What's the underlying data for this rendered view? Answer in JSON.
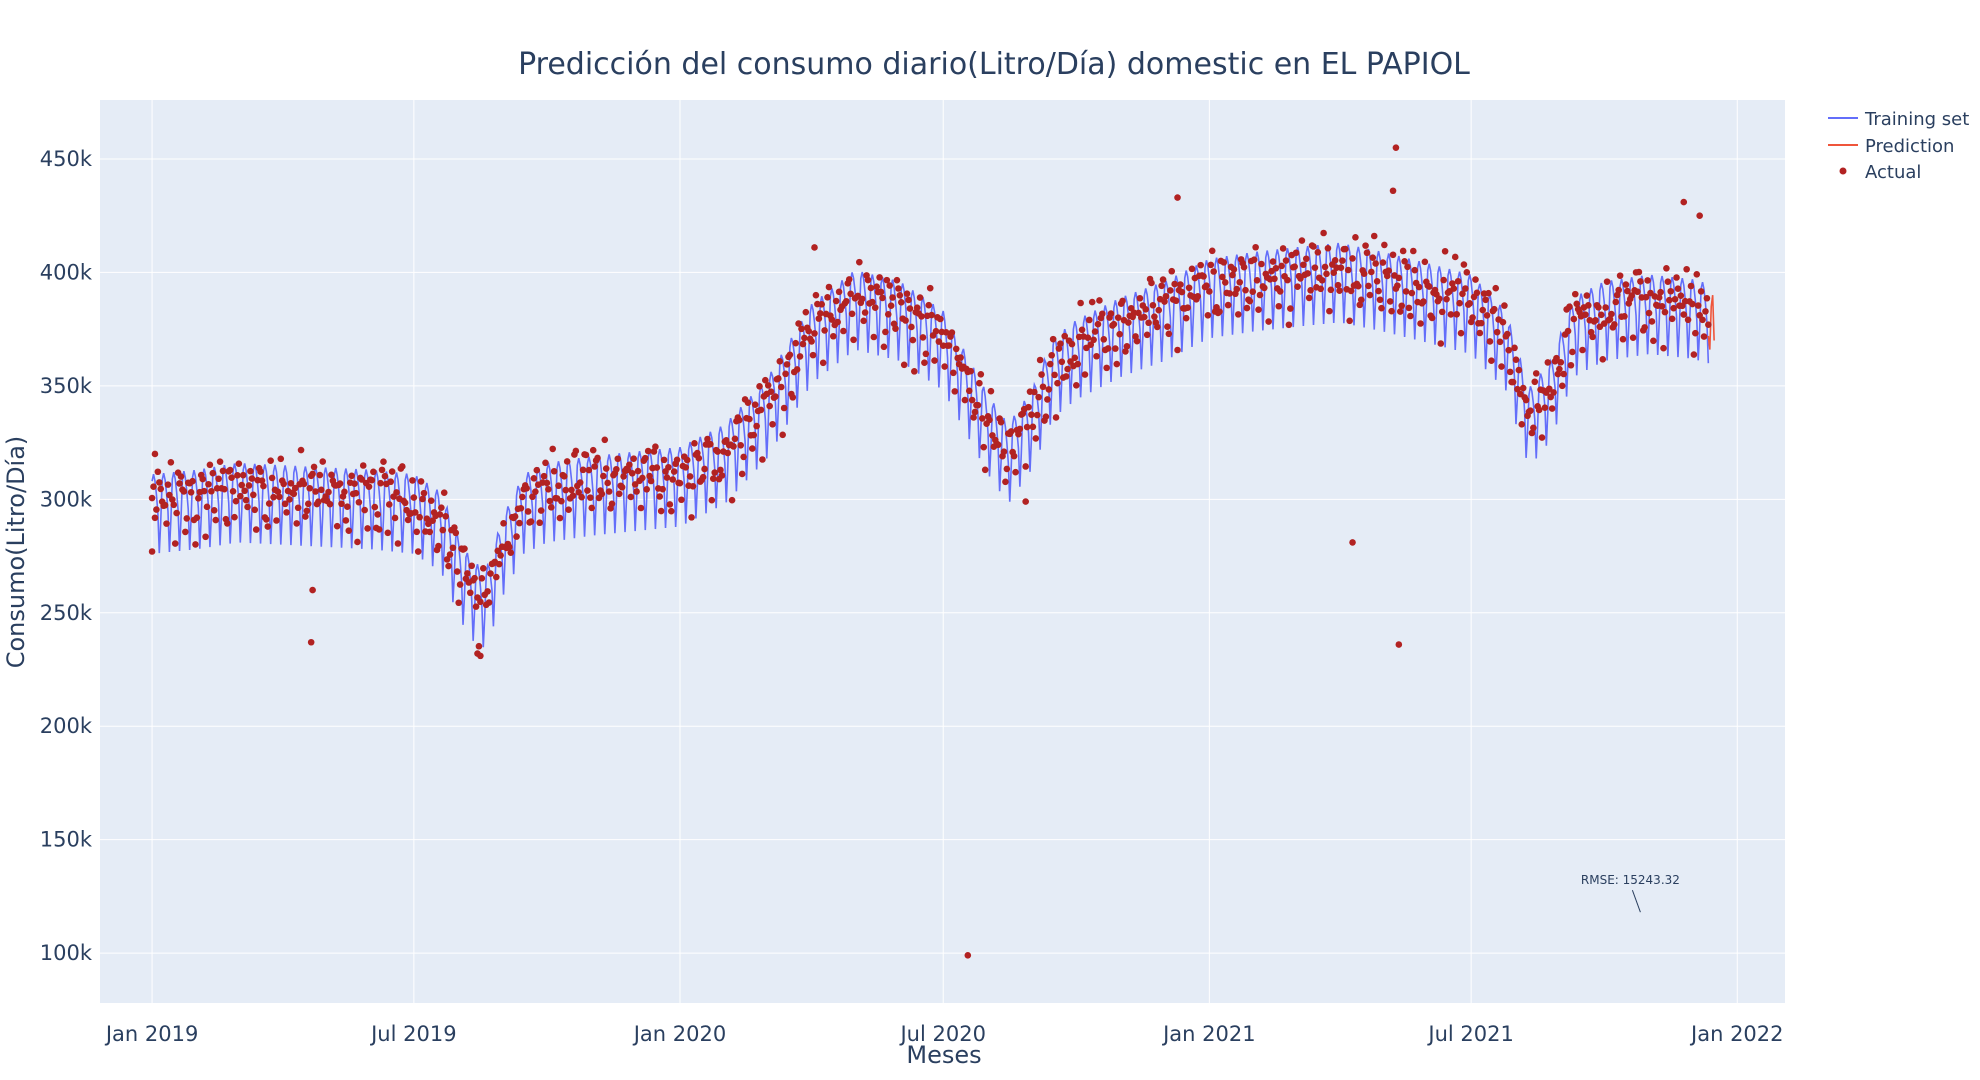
{
  "chart_data": {
    "type": "line",
    "title": "Predicción del consumo diario(Litro/Día) domestic en EL PAPIOL",
    "xlabel": "Meses",
    "ylabel": "Consumo(Litro/Día)",
    "x_range": [
      "2018-11-26",
      "2022-02-03"
    ],
    "ylim": [
      78000,
      476000
    ],
    "x_ticks": [
      {
        "date": "2019-01-01",
        "label": "Jan 2019"
      },
      {
        "date": "2019-07-01",
        "label": "Jul 2019"
      },
      {
        "date": "2020-01-01",
        "label": "Jan 2020"
      },
      {
        "date": "2020-07-01",
        "label": "Jul 2020"
      },
      {
        "date": "2021-01-01",
        "label": "Jan 2021"
      },
      {
        "date": "2021-07-01",
        "label": "Jul 2021"
      },
      {
        "date": "2022-01-01",
        "label": "Jan 2022"
      }
    ],
    "y_ticks": [
      {
        "value": 100000,
        "label": "100k"
      },
      {
        "value": 150000,
        "label": "150k"
      },
      {
        "value": 200000,
        "label": "200k"
      },
      {
        "value": 250000,
        "label": "250k"
      },
      {
        "value": 300000,
        "label": "300k"
      },
      {
        "value": 350000,
        "label": "350k"
      },
      {
        "value": 400000,
        "label": "400k"
      },
      {
        "value": 450000,
        "label": "450k"
      }
    ],
    "grid": true,
    "background": "#e5ecf6",
    "legend_position": "top-right",
    "weekly_pattern": {
      "period_days": 7,
      "weekday_offsets": [
        8000,
        11000,
        8000,
        2000,
        -6000,
        -24000,
        -10000
      ]
    },
    "series": [
      {
        "name": "Training set",
        "kind": "line",
        "color": "#636efa",
        "trend": [
          [
            "2019-01-01",
            300000
          ],
          [
            "2019-02-01",
            302000
          ],
          [
            "2019-03-01",
            305000
          ],
          [
            "2019-04-01",
            304000
          ],
          [
            "2019-05-01",
            303000
          ],
          [
            "2019-06-01",
            302000
          ],
          [
            "2019-07-01",
            300000
          ],
          [
            "2019-07-20",
            292000
          ],
          [
            "2019-08-01",
            272000
          ],
          [
            "2019-08-10",
            262000
          ],
          [
            "2019-08-20",
            258000
          ],
          [
            "2019-09-01",
            282000
          ],
          [
            "2019-09-15",
            300000
          ],
          [
            "2019-10-01",
            305000
          ],
          [
            "2019-11-01",
            308000
          ],
          [
            "2019-12-01",
            310000
          ],
          [
            "2020-01-01",
            312000
          ],
          [
            "2020-02-01",
            322000
          ],
          [
            "2020-03-01",
            342000
          ],
          [
            "2020-04-01",
            375000
          ],
          [
            "2020-05-01",
            390000
          ],
          [
            "2020-06-01",
            385000
          ],
          [
            "2020-07-01",
            372000
          ],
          [
            "2020-08-01",
            335000
          ],
          [
            "2020-08-15",
            322000
          ],
          [
            "2020-09-01",
            338000
          ],
          [
            "2020-09-15",
            360000
          ],
          [
            "2020-10-01",
            368000
          ],
          [
            "2020-11-01",
            378000
          ],
          [
            "2020-12-01",
            385000
          ],
          [
            "2021-01-01",
            395000
          ],
          [
            "2021-02-01",
            398000
          ],
          [
            "2021-03-01",
            400000
          ],
          [
            "2021-04-01",
            402000
          ],
          [
            "2021-05-01",
            398000
          ],
          [
            "2021-06-01",
            393000
          ],
          [
            "2021-07-01",
            388000
          ],
          [
            "2021-07-25",
            372000
          ],
          [
            "2021-08-10",
            338000
          ],
          [
            "2021-08-25",
            350000
          ],
          [
            "2021-09-10",
            378000
          ],
          [
            "2021-10-01",
            385000
          ],
          [
            "2021-11-01",
            388000
          ],
          [
            "2021-12-01",
            386000
          ],
          [
            "2021-12-12",
            384000
          ]
        ]
      },
      {
        "name": "Prediction",
        "kind": "line",
        "color": "#ef553b",
        "points": [
          [
            "2021-12-12",
            372000
          ],
          [
            "2021-12-13",
            366000
          ],
          [
            "2021-12-14",
            385000
          ],
          [
            "2021-12-15",
            390000
          ],
          [
            "2021-12-16",
            370000
          ]
        ]
      },
      {
        "name": "Actual",
        "kind": "markers",
        "color": "#b22222",
        "trend_source": "Training set",
        "noise_amplitude": 14000,
        "outliers": [
          [
            "2019-01-01",
            277000
          ],
          [
            "2019-01-03",
            320000
          ],
          [
            "2019-04-21",
            237000
          ],
          [
            "2019-04-22",
            260000
          ],
          [
            "2019-08-14",
            232000
          ],
          [
            "2019-08-16",
            231000
          ],
          [
            "2020-04-03",
            411000
          ],
          [
            "2020-07-18",
            99000
          ],
          [
            "2020-08-27",
            299000
          ],
          [
            "2020-12-10",
            433000
          ],
          [
            "2021-04-10",
            281000
          ],
          [
            "2021-05-10",
            455000
          ],
          [
            "2021-05-12",
            236000
          ],
          [
            "2021-05-08",
            436000
          ],
          [
            "2021-12-06",
            425000
          ],
          [
            "2021-11-25",
            431000
          ]
        ]
      }
    ],
    "annotations": [
      {
        "text": "RMSE: 15243.32",
        "date": "2021-10-26",
        "value": 118000
      }
    ]
  }
}
